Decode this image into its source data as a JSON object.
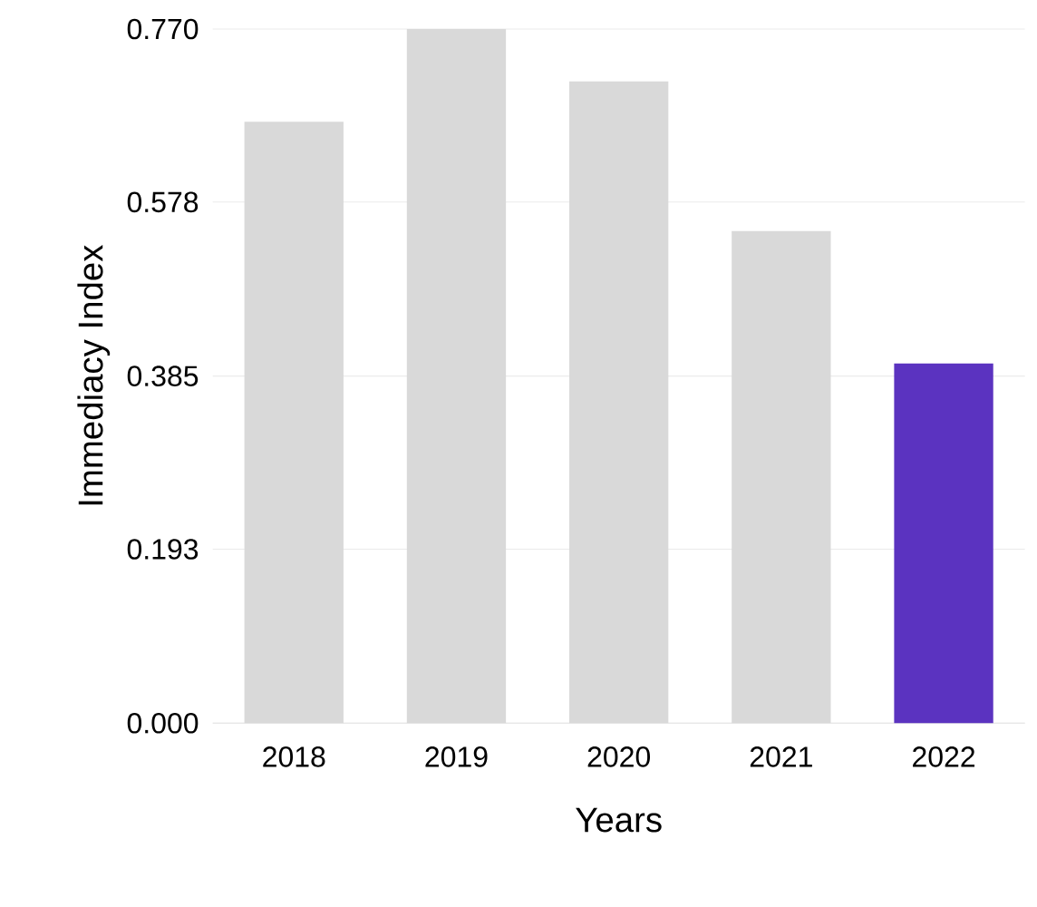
{
  "chart_data": {
    "type": "bar",
    "xlabel": "Years",
    "ylabel": "Immediacy Index",
    "categories": [
      "2018",
      "2019",
      "2020",
      "2021",
      "2022"
    ],
    "values": [
      0.667,
      0.77,
      0.712,
      0.546,
      0.399
    ],
    "colors": [
      "#d9d9d9",
      "#d9d9d9",
      "#d9d9d9",
      "#d9d9d9",
      "#5b33c0"
    ],
    "ylim": [
      0,
      0.77
    ],
    "yticks": [
      {
        "value": 0,
        "label": "0.000"
      },
      {
        "value": 0.193,
        "label": "0.193"
      },
      {
        "value": 0.385,
        "label": "0.385"
      },
      {
        "value": 0.578,
        "label": "0.578"
      },
      {
        "value": 0.77,
        "label": "0.770"
      }
    ],
    "grid": "y"
  }
}
